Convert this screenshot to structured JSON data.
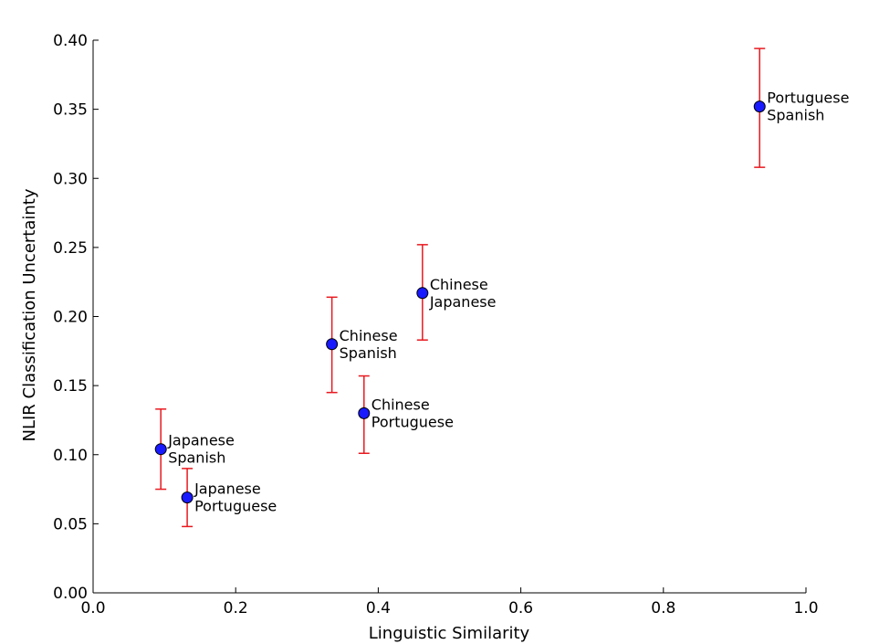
{
  "chart_data": {
    "type": "scatter",
    "xlabel": "Linguistic Similarity",
    "ylabel": "NLIR Classification Uncertainty",
    "xlim": [
      0.0,
      1.0
    ],
    "ylim": [
      0.0,
      0.4
    ],
    "xticks": [
      "0.0",
      "0.2",
      "0.4",
      "0.6",
      "0.8",
      "1.0"
    ],
    "yticks": [
      "0.00",
      "0.05",
      "0.10",
      "0.15",
      "0.20",
      "0.25",
      "0.30",
      "0.35",
      "0.40"
    ],
    "grid": false,
    "marker_color": "#1a1aff",
    "errorbar_color": "#e8191f",
    "points": [
      {
        "label": [
          "Japanese",
          "Spanish"
        ],
        "x": 0.095,
        "y": 0.104,
        "ylow": 0.075,
        "yhigh": 0.133
      },
      {
        "label": [
          "Japanese",
          "Portuguese"
        ],
        "x": 0.132,
        "y": 0.069,
        "ylow": 0.048,
        "yhigh": 0.09
      },
      {
        "label": [
          "Chinese",
          "Spanish"
        ],
        "x": 0.335,
        "y": 0.18,
        "ylow": 0.145,
        "yhigh": 0.214
      },
      {
        "label": [
          "Chinese",
          "Portuguese"
        ],
        "x": 0.38,
        "y": 0.13,
        "ylow": 0.101,
        "yhigh": 0.157
      },
      {
        "label": [
          "Chinese",
          "Japanese"
        ],
        "x": 0.462,
        "y": 0.217,
        "ylow": 0.183,
        "yhigh": 0.252
      },
      {
        "label": [
          "Portuguese",
          "Spanish"
        ],
        "x": 0.935,
        "y": 0.352,
        "ylow": 0.308,
        "yhigh": 0.394
      }
    ]
  }
}
